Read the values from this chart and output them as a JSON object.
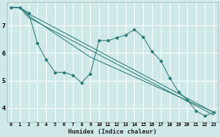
{
  "xlabel": "Humidex (Indice chaleur)",
  "background_color": "#cfe8e8",
  "grid_color": "#ffffff",
  "line_color": "#2d7d78",
  "xlim": [
    -0.5,
    23.5
  ],
  "ylim": [
    3.5,
    7.85
  ],
  "yticks": [
    4,
    5,
    6,
    7
  ],
  "xticks": [
    0,
    1,
    2,
    3,
    4,
    5,
    6,
    7,
    8,
    9,
    10,
    11,
    12,
    13,
    14,
    15,
    16,
    17,
    18,
    19,
    20,
    21,
    22,
    23
  ],
  "series1_x": [
    0,
    1,
    2,
    3,
    4,
    5,
    6,
    7,
    8,
    9,
    10,
    11,
    12,
    13,
    14,
    15,
    16,
    17,
    18,
    19,
    20,
    21,
    22,
    23
  ],
  "series1_y": [
    7.65,
    7.65,
    7.45,
    6.35,
    5.75,
    5.3,
    5.3,
    5.2,
    4.92,
    5.25,
    6.45,
    6.45,
    6.55,
    6.65,
    6.85,
    6.58,
    6.05,
    5.72,
    5.1,
    4.6,
    4.3,
    3.9,
    3.72,
    3.85
  ],
  "series2_x": [
    0,
    1,
    2,
    23
  ],
  "series2_y": [
    7.65,
    7.65,
    7.42,
    3.85
  ],
  "series3_x": [
    0,
    1,
    2,
    9,
    23
  ],
  "series3_y": [
    7.65,
    7.65,
    7.35,
    5.85,
    3.85
  ],
  "series4_x": [
    0,
    1,
    2,
    23
  ],
  "series4_y": [
    7.65,
    7.65,
    7.28,
    3.75
  ]
}
